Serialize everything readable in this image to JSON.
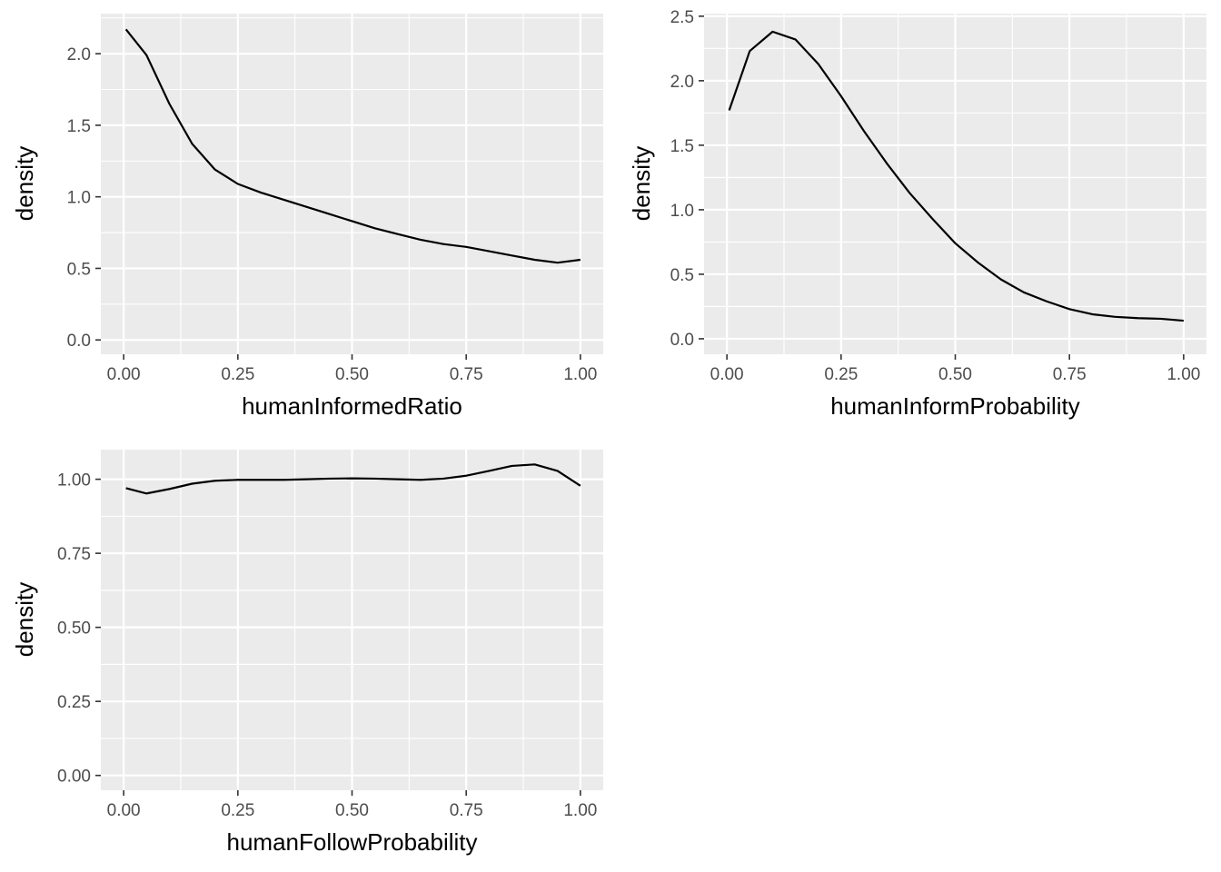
{
  "chart_data": [
    {
      "type": "line",
      "title": "",
      "xlabel": "humanInformedRatio",
      "ylabel": "density",
      "xlim": [
        -0.05,
        1.05
      ],
      "ylim": [
        -0.1,
        2.28
      ],
      "x_ticks": [
        0,
        0.25,
        0.5,
        0.75,
        1
      ],
      "x_tick_labels": [
        "0.00",
        "0.25",
        "0.50",
        "0.75",
        "1.00"
      ],
      "y_ticks": [
        0,
        0.5,
        1,
        1.5,
        2
      ],
      "y_tick_labels": [
        "0.0",
        "0.5",
        "1.0",
        "1.5",
        "2.0"
      ],
      "grid": true,
      "x": [
        0.005,
        0.05,
        0.1,
        0.15,
        0.2,
        0.25,
        0.3,
        0.35,
        0.4,
        0.45,
        0.5,
        0.55,
        0.6,
        0.65,
        0.7,
        0.75,
        0.8,
        0.85,
        0.9,
        0.95,
        1.0
      ],
      "y": [
        2.17,
        1.99,
        1.65,
        1.37,
        1.19,
        1.09,
        1.03,
        0.98,
        0.93,
        0.88,
        0.83,
        0.78,
        0.74,
        0.7,
        0.67,
        0.65,
        0.62,
        0.59,
        0.56,
        0.54,
        0.56
      ]
    },
    {
      "type": "line",
      "title": "",
      "xlabel": "humanInformProbability",
      "ylabel": "density",
      "xlim": [
        -0.05,
        1.05
      ],
      "ylim": [
        -0.12,
        2.52
      ],
      "x_ticks": [
        0,
        0.25,
        0.5,
        0.75,
        1
      ],
      "x_tick_labels": [
        "0.00",
        "0.25",
        "0.50",
        "0.75",
        "1.00"
      ],
      "y_ticks": [
        0,
        0.5,
        1,
        1.5,
        2,
        2.5
      ],
      "y_tick_labels": [
        "0.0",
        "0.5",
        "1.0",
        "1.5",
        "2.0",
        "2.5"
      ],
      "grid": true,
      "x": [
        0.005,
        0.05,
        0.1,
        0.15,
        0.2,
        0.25,
        0.3,
        0.35,
        0.4,
        0.45,
        0.5,
        0.55,
        0.6,
        0.65,
        0.7,
        0.75,
        0.8,
        0.85,
        0.9,
        0.95,
        1.0
      ],
      "y": [
        1.77,
        2.23,
        2.38,
        2.32,
        2.13,
        1.88,
        1.61,
        1.36,
        1.13,
        0.93,
        0.74,
        0.59,
        0.46,
        0.36,
        0.29,
        0.23,
        0.19,
        0.17,
        0.16,
        0.155,
        0.14
      ]
    },
    {
      "type": "line",
      "title": "",
      "xlabel": "humanFollowProbability",
      "ylabel": "density",
      "xlim": [
        -0.05,
        1.05
      ],
      "ylim": [
        -0.05,
        1.1
      ],
      "x_ticks": [
        0,
        0.25,
        0.5,
        0.75,
        1
      ],
      "x_tick_labels": [
        "0.00",
        "0.25",
        "0.50",
        "0.75",
        "1.00"
      ],
      "y_ticks": [
        0,
        0.25,
        0.5,
        0.75,
        1
      ],
      "y_tick_labels": [
        "0.00",
        "0.25",
        "0.50",
        "0.75",
        "1.00"
      ],
      "grid": true,
      "x": [
        0.005,
        0.05,
        0.1,
        0.15,
        0.2,
        0.25,
        0.3,
        0.35,
        0.4,
        0.45,
        0.5,
        0.55,
        0.6,
        0.65,
        0.7,
        0.75,
        0.8,
        0.85,
        0.9,
        0.95,
        1.0
      ],
      "y": [
        0.97,
        0.952,
        0.967,
        0.985,
        0.995,
        0.998,
        0.998,
        0.998,
        1.0,
        1.002,
        1.003,
        1.002,
        1.0,
        0.998,
        1.002,
        1.012,
        1.028,
        1.045,
        1.05,
        1.028,
        0.978
      ]
    }
  ]
}
